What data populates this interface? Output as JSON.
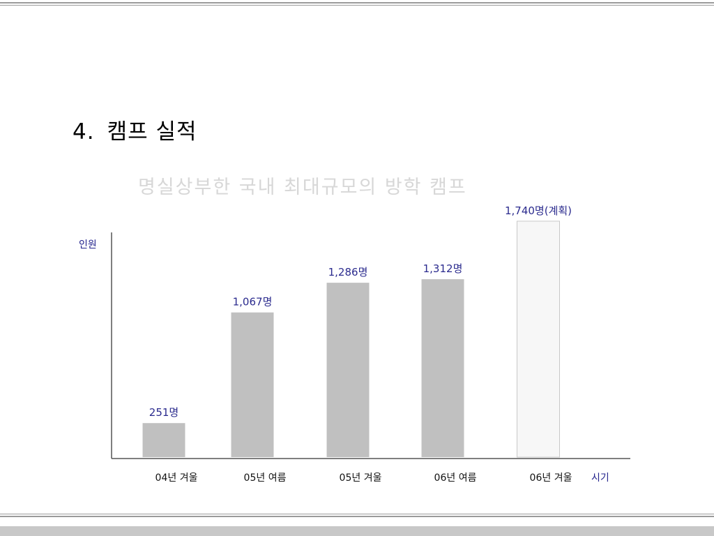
{
  "slide": {
    "heading_number": "4.",
    "heading_text": "캠프 실적"
  },
  "chart_data": {
    "type": "bar",
    "title": "명실상부한 국내 최대규모의 방학 캠프",
    "ylabel": "인원",
    "xlabel": "시기",
    "categories": [
      "04년 겨울",
      "05년 여름",
      "05년 겨울",
      "06년 여름",
      "06년 겨울"
    ],
    "values": [
      251,
      1067,
      1286,
      1312,
      1740
    ],
    "data_labels": [
      "251명",
      "1,067명",
      "1,286명",
      "1,312명",
      "1,740명(계획)"
    ],
    "planned": [
      false,
      false,
      false,
      false,
      true
    ],
    "ylim": [
      0,
      1930
    ],
    "grid": false,
    "colors": {
      "bar": "#c0c0c0",
      "planned_bar_fill": "#f7f7f7",
      "planned_bar_stroke": "#c8c8c8",
      "label": "#2b2b8e",
      "axis": "#555555",
      "title": "#d7d7d7"
    }
  }
}
